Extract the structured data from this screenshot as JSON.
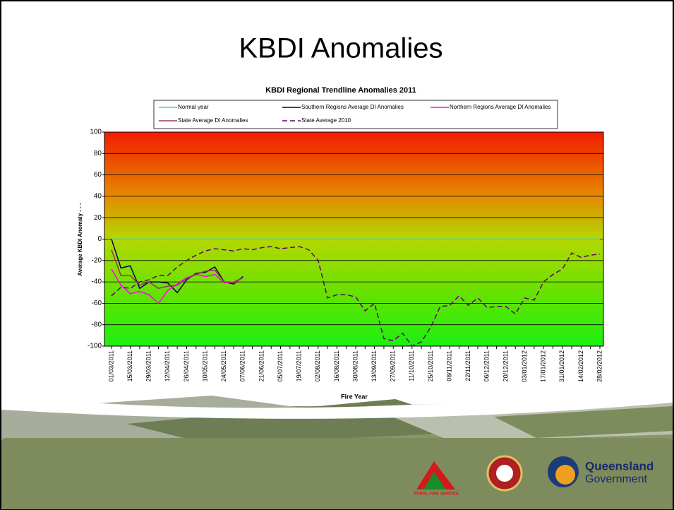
{
  "slide_title": "KBDI Anomalies",
  "footer": {
    "rfs": "RURAL FIRE SERVICE",
    "qld": [
      "Queensland",
      "Government"
    ]
  },
  "chart_data": {
    "type": "line",
    "title": "KBDI Regional Trendline Anomalies  2011",
    "x_label": "Fire Year",
    "y_label": "Average KBDI Anomaly - - -",
    "categories": [
      "01/03/2011",
      null,
      "15/03/2011",
      null,
      "29/03/2011",
      null,
      "12/04/2011",
      null,
      "26/04/2011",
      null,
      "10/05/2011",
      null,
      "24/05/2011",
      null,
      "07/06/2011",
      null,
      "21/06/2011",
      null,
      "05/07/2011",
      null,
      "19/07/2011",
      null,
      "02/08/2011",
      null,
      "16/08/2011",
      null,
      "30/08/2011",
      null,
      "13/09/2011",
      null,
      "27/09/2011",
      null,
      "11/10/2011",
      null,
      "25/10/2011",
      null,
      "08/11/2011",
      null,
      "22/11/2011",
      null,
      "06/12/2011",
      null,
      "20/12/2011",
      null,
      "03/01/2012",
      null,
      "17/01/2012",
      null,
      "31/01/2012",
      null,
      "14/02/2012",
      null,
      "28/02/2012"
    ],
    "ylim": [
      -100,
      100
    ],
    "yticks": [
      -100,
      -80,
      -60,
      -40,
      -20,
      0,
      20,
      40,
      60,
      80,
      100
    ],
    "grid": true,
    "legend": "top",
    "series": [
      {
        "name": "Normal year",
        "color": "#33d6d6",
        "style": "solid",
        "values": [
          0,
          0,
          0,
          0,
          0,
          0,
          0,
          0,
          0,
          0,
          0,
          0,
          0,
          0,
          0,
          0,
          0,
          0,
          0,
          0,
          0,
          0,
          0,
          0,
          0,
          0,
          0,
          0,
          0,
          0,
          0,
          0,
          0,
          0,
          0,
          0,
          0,
          0,
          0,
          0,
          0,
          0,
          0,
          0,
          0,
          0,
          0,
          0,
          0,
          0,
          0,
          0,
          0
        ]
      },
      {
        "name": "Southern Regions Average DI Anomalies",
        "color": "#000055",
        "style": "solid",
        "values": [
          0,
          -27,
          -25,
          -46,
          -40,
          -40,
          -41,
          -50,
          -38,
          -32,
          -31,
          -26,
          -40,
          -42,
          -35,
          null,
          null,
          null,
          null,
          null,
          null,
          null,
          null,
          null,
          null,
          null,
          null,
          null,
          null,
          null,
          null,
          null,
          null,
          null,
          null,
          null,
          null,
          null,
          null,
          null,
          null,
          null,
          null,
          null,
          null,
          null,
          null,
          null,
          null,
          null,
          null,
          null,
          null
        ]
      },
      {
        "name": "Northern Regions Average DI Anomalies",
        "color": "#ff00ff",
        "style": "solid",
        "values": [
          -28,
          -43,
          -51,
          -49,
          -52,
          -60,
          -48,
          -42,
          -36,
          -33,
          -35,
          -33,
          -41,
          -40,
          -36,
          null,
          null,
          null,
          null,
          null,
          null,
          null,
          null,
          null,
          null,
          null,
          null,
          null,
          null,
          null,
          null,
          null,
          null,
          null,
          null,
          null,
          null,
          null,
          null,
          null,
          null,
          null,
          null,
          null,
          null,
          null,
          null,
          null,
          null,
          null,
          null,
          null,
          null
        ]
      },
      {
        "name": "State Average DI Anomalies",
        "color": "#993355",
        "style": "solid",
        "values": [
          -10,
          -34,
          -34,
          -43,
          -40,
          -46,
          -44,
          -43,
          -37,
          -33,
          -30,
          -29,
          -40,
          -41,
          -36,
          null,
          null,
          null,
          null,
          null,
          null,
          null,
          null,
          null,
          null,
          null,
          null,
          null,
          null,
          null,
          null,
          null,
          null,
          null,
          null,
          null,
          null,
          null,
          null,
          null,
          null,
          null,
          null,
          null,
          null,
          null,
          null,
          null,
          null,
          null,
          null,
          null,
          null
        ]
      },
      {
        "name": "State Average 2010",
        "color": "#660066",
        "style": "dashed",
        "values": [
          -53,
          -45,
          -46,
          -40,
          -38,
          -34,
          -34,
          -26,
          -20,
          -15,
          -11,
          -9,
          -10,
          -11,
          -9,
          -10,
          -8,
          -7,
          -9,
          -8,
          -7,
          -10,
          -20,
          -55,
          -52,
          -52,
          -54,
          -67,
          -60,
          -93,
          -95,
          -88,
          -100,
          -96,
          -82,
          -63,
          -62,
          -53,
          -62,
          -55,
          -64,
          -63,
          -63,
          -70,
          -55,
          -57,
          -40,
          -33,
          -28,
          -13,
          -17,
          -15,
          -14
        ]
      }
    ]
  }
}
